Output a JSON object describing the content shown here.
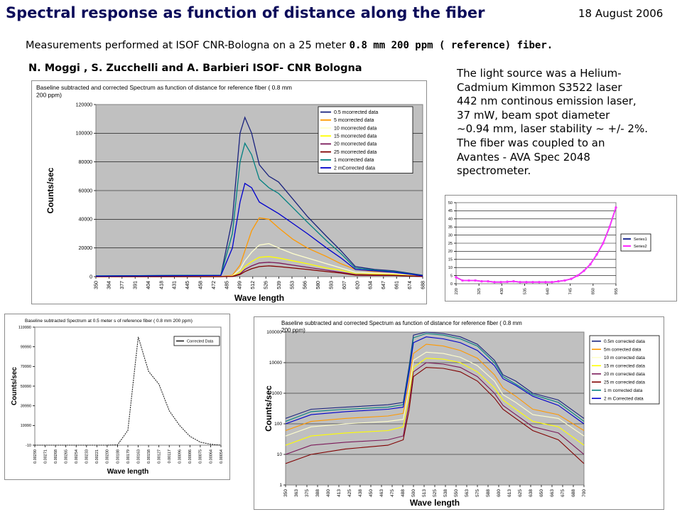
{
  "header": {
    "title": "Spectral response as function of distance along the fiber",
    "date": "18 August 2006",
    "subtitle_main": "Measurements performed at ISOF CNR-Bologna on a 25 meter",
    "subtitle_fiber": "0.8 mm 200 ppm ( reference) fiber.",
    "authors": "N. Moggi , S. Zucchelli and  A. Barbieri  ISOF- CNR Bologna"
  },
  "description_lines": [
    "The light source was a  Helium-",
    "Cadmium Kimmon S3522 laser",
    "442 nm continous emission laser,",
    "37 mW,   beam spot diameter",
    "~0.94 mm, laser stability  ~ +/- 2%.",
    "The fiber was coupled to an",
    "Avantes - AVA Spec 2048",
    "spectrometer."
  ],
  "colors": {
    "plot_gray": "#c0c0c0",
    "title_navy": "#0b0b5a",
    "series": [
      "#1a237e",
      "#ff9900",
      "#ffffcc",
      "#ffff00",
      "#7b1a5a",
      "#800000",
      "#008080",
      "#0000cc"
    ]
  },
  "chart_data": [
    {
      "type": "line",
      "title": "Baseline subtracted and corrected Spectrum as function of distance for reference fiber ( 0.8 mm 200 ppm)",
      "xlabel": "Wave length",
      "ylabel": "Counts/sec",
      "ylim": [
        0,
        120000
      ],
      "yticks": [
        "0",
        "20000",
        "40000",
        "60000",
        "80000",
        "100000",
        "120000"
      ],
      "xticks": [
        "350",
        "364",
        "377",
        "391",
        "404",
        "418",
        "431",
        "445",
        "458",
        "472",
        "485",
        "499",
        "512",
        "526",
        "539",
        "553",
        "566",
        "580",
        "593",
        "607",
        "620",
        "634",
        "647",
        "661",
        "674",
        "688"
      ],
      "grid": true,
      "legend": "right",
      "series": [
        {
          "name": "0.5 mcorrected data",
          "x": [
            350,
            480,
            492,
            500,
            505,
            512,
            520,
            530,
            540,
            555,
            570,
            590,
            605,
            620,
            640,
            660,
            690
          ],
          "values": [
            500,
            1000,
            40000,
            100000,
            111000,
            100000,
            78000,
            70000,
            66000,
            54000,
            42000,
            28000,
            18000,
            7000,
            5000,
            4000,
            1000
          ]
        },
        {
          "name": "5 mcorrected data",
          "x": [
            350,
            480,
            492,
            500,
            505,
            512,
            520,
            530,
            540,
            555,
            570,
            590,
            605,
            620,
            640,
            660,
            690
          ],
          "values": [
            0,
            0,
            1000,
            8000,
            18000,
            32000,
            41000,
            40000,
            34000,
            26000,
            20000,
            14000,
            9000,
            5000,
            3500,
            3000,
            500
          ]
        },
        {
          "name": "10 mcorrected data",
          "x": [
            350,
            480,
            492,
            500,
            505,
            512,
            520,
            530,
            540,
            555,
            570,
            590,
            605,
            620,
            640,
            660,
            690
          ],
          "values": [
            0,
            0,
            500,
            5000,
            11000,
            17000,
            22000,
            23000,
            20000,
            16000,
            13000,
            9000,
            6000,
            3000,
            2500,
            2000,
            300
          ]
        },
        {
          "name": "15 mcorrected data",
          "x": [
            350,
            480,
            492,
            500,
            505,
            512,
            520,
            530,
            540,
            555,
            570,
            590,
            605,
            620,
            640,
            660,
            690
          ],
          "values": [
            0,
            0,
            300,
            3000,
            7000,
            10500,
            13500,
            14000,
            13000,
            11000,
            9000,
            6000,
            4500,
            2000,
            1800,
            1500,
            200
          ]
        },
        {
          "name": "20 mcorrected data",
          "x": [
            350,
            480,
            492,
            500,
            505,
            512,
            520,
            530,
            540,
            555,
            570,
            590,
            605,
            620,
            640,
            660,
            690
          ],
          "values": [
            0,
            0,
            200,
            2000,
            5000,
            7500,
            9500,
            10000,
            9500,
            8000,
            6500,
            4500,
            3000,
            1500,
            1200,
            1000,
            100
          ]
        },
        {
          "name": "25 mcorrected data",
          "x": [
            350,
            480,
            492,
            500,
            505,
            512,
            520,
            530,
            540,
            555,
            570,
            590,
            605,
            620,
            640,
            660,
            690
          ],
          "values": [
            0,
            0,
            100,
            1500,
            3500,
            5500,
            7000,
            7500,
            7000,
            6000,
            5000,
            3500,
            2500,
            1000,
            900,
            800,
            100
          ]
        },
        {
          "name": "1 mcorrected data",
          "x": [
            350,
            480,
            492,
            500,
            505,
            512,
            520,
            530,
            540,
            555,
            570,
            590,
            605,
            620,
            640,
            660,
            690
          ],
          "values": [
            500,
            1000,
            30000,
            80000,
            93000,
            85000,
            68000,
            62000,
            58000,
            48000,
            38000,
            25000,
            16000,
            6000,
            4500,
            3500,
            800
          ]
        },
        {
          "name": "2 mCorrected data",
          "x": [
            350,
            480,
            492,
            500,
            505,
            512,
            520,
            530,
            540,
            555,
            570,
            590,
            605,
            620,
            640,
            660,
            690
          ],
          "values": [
            300,
            800,
            20000,
            52000,
            65000,
            62000,
            52000,
            48000,
            44000,
            37000,
            30000,
            20000,
            13000,
            5000,
            4000,
            3000,
            600
          ]
        }
      ]
    },
    {
      "type": "line",
      "xlim": [
        0,
        25
      ],
      "ylim": [
        0,
        50
      ],
      "yticks": [
        "0",
        "5",
        "10",
        "15",
        "20",
        "25",
        "30",
        "35",
        "40",
        "45",
        "50"
      ],
      "xticks": [
        "220",
        "325",
        "430",
        "535",
        "640",
        "745",
        "850",
        "955"
      ],
      "grid": true,
      "legend": "right",
      "series": [
        {
          "name": "Series1",
          "x": [
            0,
            1,
            2,
            3,
            4,
            5,
            6,
            7,
            8,
            9,
            10,
            11,
            12,
            13,
            14,
            15,
            16,
            17,
            18,
            19,
            20,
            21,
            22,
            23,
            24,
            25
          ],
          "values": [
            4,
            2,
            2,
            2,
            1.5,
            1.5,
            1,
            1,
            1.2,
            1.5,
            1,
            1,
            1,
            1,
            1,
            1,
            1.5,
            2,
            3,
            5,
            8,
            12,
            18,
            25,
            35,
            47
          ]
        },
        {
          "name": "Series2",
          "x": [
            0,
            1,
            2,
            3,
            4,
            5,
            6,
            7,
            8,
            9,
            10,
            11,
            12,
            13,
            14,
            15,
            16,
            17,
            18,
            19,
            20,
            21,
            22,
            23,
            24,
            25
          ],
          "values": [
            4,
            2,
            2,
            2,
            1.5,
            1.5,
            1,
            1,
            1.2,
            1.5,
            1,
            1,
            1,
            1,
            1,
            1,
            1.5,
            2,
            3,
            5,
            8,
            12,
            18,
            25,
            35,
            47
          ]
        }
      ]
    },
    {
      "type": "line",
      "title": "Baseline subtracted Spectrum at 0.5 meter s of reference fiber ( 0.8 mm 200 ppm)",
      "xlabel": "Wave length",
      "ylabel": "Counts/sec",
      "ylim": [
        -10,
        119990
      ],
      "yticks": [
        "-10",
        "19990",
        "39990",
        "59990",
        "79990",
        "99990",
        "119990"
      ],
      "xticks": [
        "0.00290",
        "0.00271",
        "0.00268",
        "0.00265",
        "0.00254",
        "0.00233",
        "0.00221",
        "0.00200",
        "0.00188",
        "0.00179",
        "0.00163",
        "0.00158",
        "0.00127",
        "0.00117",
        "0.00096",
        "0.00086",
        "0.00075",
        "0.00064",
        "0.00054"
      ],
      "legend": "top-right",
      "series": [
        {
          "name": "Corrected Data",
          "x": [
            0,
            1,
            2,
            3,
            4,
            5,
            6,
            7,
            8,
            9,
            10,
            11,
            12,
            13,
            14,
            15,
            16,
            17,
            18
          ],
          "values": [
            0,
            0,
            0,
            0,
            0,
            0,
            0,
            0,
            300,
            15000,
            110000,
            75000,
            62000,
            35000,
            20000,
            9000,
            3000,
            900,
            0
          ]
        }
      ]
    },
    {
      "type": "line",
      "title": "Baseline subtracted and corrected Spectrum as function of distance for reference fiber ( 0.8 mm 200 ppm)",
      "xlabel": "Wave length",
      "ylabel": "Counts/sec",
      "yscale": "log",
      "ylim": [
        1,
        100000
      ],
      "yticks": [
        "1",
        "10",
        "100",
        "1000",
        "10000",
        "100000"
      ],
      "xticks": [
        "350",
        "363",
        "375",
        "388",
        "400",
        "413",
        "425",
        "438",
        "450",
        "463",
        "475",
        "488",
        "500",
        "513",
        "525",
        "538",
        "550",
        "563",
        "575",
        "588",
        "600",
        "613",
        "625",
        "638",
        "650",
        "663",
        "675",
        "688",
        "700"
      ],
      "grid": true,
      "legend": "right",
      "series": [
        {
          "name": "0.5m corrected data",
          "x": [
            350,
            380,
            420,
            470,
            488,
            495,
            500,
            515,
            535,
            555,
            575,
            595,
            605,
            620,
            640,
            670,
            700
          ],
          "values": [
            150,
            300,
            350,
            420,
            500,
            8000,
            80000,
            100000,
            90000,
            70000,
            40000,
            12000,
            4000,
            2500,
            1000,
            600,
            150
          ]
        },
        {
          "name": "5m corrected data",
          "x": [
            350,
            380,
            420,
            470,
            488,
            495,
            500,
            515,
            535,
            555,
            575,
            595,
            605,
            620,
            640,
            670,
            700
          ],
          "values": [
            60,
            120,
            150,
            180,
            220,
            2500,
            20000,
            40000,
            35000,
            25000,
            14000,
            4000,
            1500,
            800,
            300,
            200,
            60
          ]
        },
        {
          "name": "10 m corrected data",
          "x": [
            350,
            380,
            420,
            470,
            488,
            495,
            500,
            515,
            535,
            555,
            575,
            595,
            605,
            620,
            640,
            670,
            700
          ],
          "values": [
            40,
            80,
            100,
            120,
            140,
            1500,
            12000,
            22000,
            20000,
            15000,
            8000,
            2500,
            900,
            500,
            200,
            150,
            40
          ]
        },
        {
          "name": "15 m corrected data",
          "x": [
            350,
            380,
            420,
            470,
            488,
            495,
            500,
            515,
            535,
            555,
            575,
            595,
            605,
            620,
            640,
            670,
            700
          ],
          "values": [
            20,
            40,
            50,
            60,
            80,
            800,
            7000,
            14000,
            13000,
            10000,
            5000,
            1500,
            600,
            300,
            120,
            80,
            20
          ]
        },
        {
          "name": "20 m corrected data",
          "x": [
            350,
            380,
            420,
            470,
            488,
            495,
            500,
            515,
            535,
            555,
            575,
            595,
            605,
            620,
            640,
            670,
            700
          ],
          "values": [
            10,
            20,
            25,
            30,
            40,
            500,
            5000,
            10000,
            9000,
            7000,
            3500,
            1000,
            400,
            200,
            80,
            50,
            10
          ]
        },
        {
          "name": "25 m corrected data",
          "x": [
            350,
            380,
            420,
            470,
            488,
            495,
            500,
            515,
            535,
            555,
            575,
            595,
            605,
            620,
            640,
            670,
            700
          ],
          "values": [
            5,
            10,
            15,
            20,
            30,
            300,
            3500,
            7000,
            6500,
            5000,
            2500,
            700,
            300,
            150,
            60,
            30,
            5
          ]
        },
        {
          "name": "1 m corrected data",
          "x": [
            350,
            380,
            420,
            470,
            488,
            495,
            500,
            515,
            535,
            555,
            575,
            595,
            605,
            620,
            640,
            670,
            700
          ],
          "values": [
            120,
            250,
            300,
            350,
            420,
            6500,
            65000,
            90000,
            80000,
            60000,
            35000,
            10000,
            3500,
            2000,
            900,
            500,
            120
          ]
        },
        {
          "name": "2 m Corrected data",
          "x": [
            350,
            380,
            420,
            470,
            488,
            495,
            500,
            515,
            535,
            555,
            575,
            595,
            605,
            620,
            640,
            670,
            700
          ],
          "values": [
            100,
            200,
            250,
            300,
            350,
            5000,
            45000,
            70000,
            60000,
            45000,
            25000,
            8000,
            3000,
            1800,
            800,
            400,
            100
          ]
        }
      ]
    }
  ]
}
